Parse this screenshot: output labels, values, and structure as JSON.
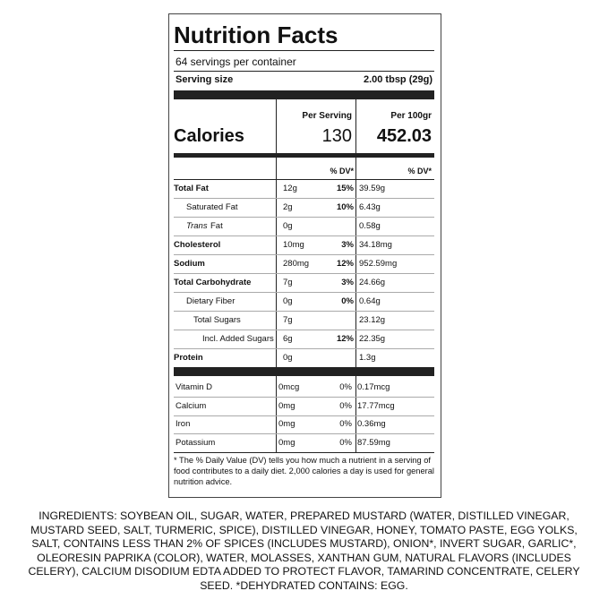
{
  "header": {
    "title": "Nutrition Facts"
  },
  "servings_per_container": "64 servings per container",
  "serving_size": {
    "label": "Serving size",
    "value": "2.00 tbsp (29g)"
  },
  "columns": {
    "per_serving": "Per Serving",
    "per_100g": "Per 100gr"
  },
  "calories": {
    "label": "Calories",
    "per_serving": "130",
    "per_100g": "452.03"
  },
  "dv_header": {
    "per_serving": "% DV*",
    "per_100g": "% DV*"
  },
  "nutrients": [
    {
      "name": "Total Fat",
      "amount": "12g",
      "dv": "15%",
      "per_100g": "39.59g"
    },
    {
      "name": "Saturated Fat",
      "amount": "2g",
      "dv": "10%",
      "per_100g": "6.43g"
    },
    {
      "name_italic": "Trans",
      "name": "Fat",
      "amount": "0g",
      "per_100g": "0.58g"
    },
    {
      "name": "Cholesterol",
      "amount": "10mg",
      "dv": "3%",
      "per_100g": "34.18mg"
    },
    {
      "name": "Sodium",
      "amount": "280mg",
      "dv": "12%",
      "per_100g": "952.59mg"
    },
    {
      "name": "Total Carbohydrate",
      "amount": "7g",
      "dv": "3%",
      "per_100g": "24.66g"
    },
    {
      "name": "Dietary Fiber",
      "amount": "0g",
      "dv": "0%",
      "per_100g": "0.64g"
    },
    {
      "name": "Total Sugars",
      "amount": "7g",
      "per_100g": "23.12g"
    },
    {
      "name": "Incl. Added Sugars",
      "amount": "6g",
      "dv": "12%",
      "per_100g": "22.35g"
    },
    {
      "name": "Protein",
      "amount": "0g",
      "per_100g": "1.3g"
    }
  ],
  "vitamins": [
    {
      "name": "Vitamin D",
      "amount": "0mcg",
      "dv": "0%",
      "per_100g": "0.17mcg"
    },
    {
      "name": "Calcium",
      "amount": "0mg",
      "dv": "0%",
      "per_100g": "17.77mcg"
    },
    {
      "name": "Iron",
      "amount": "0mg",
      "dv": "0%",
      "per_100g": "0.36mg"
    },
    {
      "name": "Potassium",
      "amount": "0mg",
      "dv": "0%",
      "per_100g": "87.59mg"
    }
  ],
  "footnote": "* The % Daily Value (DV) tells you how much a nutrient in a serving of food contributes to a daily diet. 2,000 calories a day is used for general nutrition advice.",
  "ingredients": "INGREDIENTS: SOYBEAN OIL, SUGAR, WATER, PREPARED MUSTARD (WATER, DISTILLED VINEGAR, MUSTARD SEED, SALT, TURMERIC, SPICE), DISTILLED VINEGAR, HONEY, TOMATO PASTE, EGG YOLKS, SALT, CONTAINS LESS THAN 2% OF SPICES (INCLUDES MUSTARD), ONION*, INVERT SUGAR, GARLIC*, OLEORESIN PAPRIKA (COLOR), WATER, MOLASSES, XANTHAN GUM, NATURAL FLAVORS (INCLUDES CELERY), CALCIUM DISODIUM EDTA ADDED TO PROTECT FLAVOR, TAMARIND CONCENTRATE, CELERY SEED. *DEHYDRATED CONTAINS: EGG."
}
